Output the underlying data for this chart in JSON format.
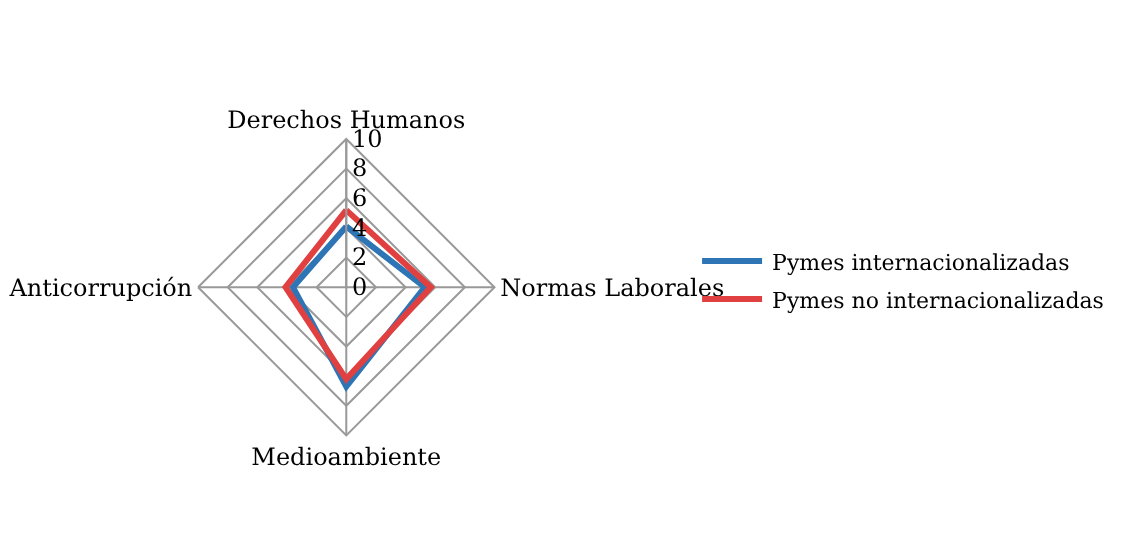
{
  "chart_data": {
    "type": "radar",
    "categories": [
      "Derechos Humanos",
      "Normas Laborales",
      "Medioambiente",
      "Anticorrupción"
    ],
    "series": [
      {
        "name": "Pymes internacionalizadas",
        "color": "#2e75b6",
        "values": [
          4.1,
          5.3,
          6.7,
          3.6
        ]
      },
      {
        "name": "Pymes no internacionalizadas",
        "color": "#e04040",
        "values": [
          5.2,
          5.7,
          6.2,
          4.1
        ]
      }
    ],
    "ylim": [
      0,
      10
    ],
    "yticks": [
      0,
      2,
      4,
      6,
      8,
      10
    ],
    "grid": true,
    "legend": "right",
    "marker": "none",
    "line_style": "solid"
  }
}
